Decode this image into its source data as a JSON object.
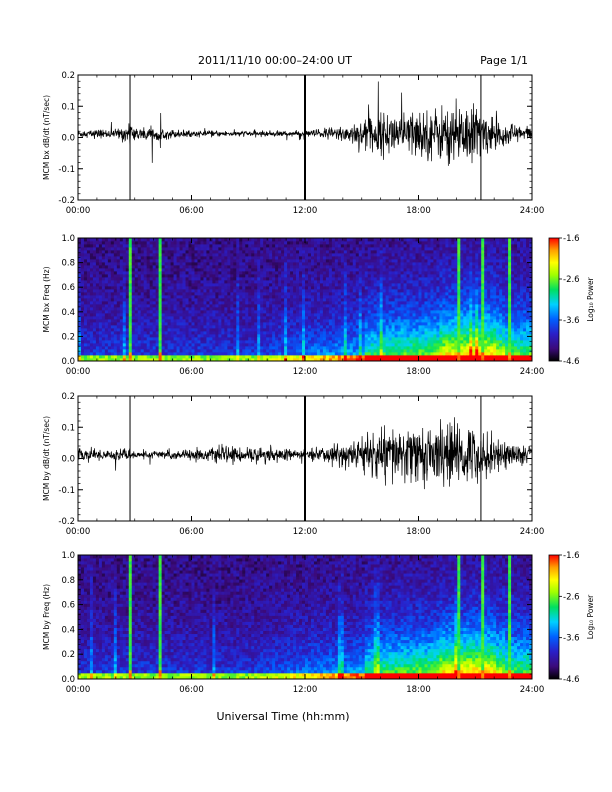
{
  "header": {
    "title": "2011/11/10  00:00–24:00 UT",
    "page": "Page 1/1"
  },
  "footer": {
    "xlabel": "Universal Time (hh:mm)"
  },
  "colors": {
    "trace": "#000000",
    "colorbar_stops": [
      "#000000",
      "#3b0a7a",
      "#2a1fc8",
      "#0060ff",
      "#00d0ff",
      "#00e060",
      "#a0ff00",
      "#ffff00",
      "#ffa000",
      "#ff0000"
    ]
  },
  "chart_data": [
    {
      "type": "line",
      "ylabel": "MCM bx dB/dt (nT/sec)",
      "xlim": [
        0,
        24
      ],
      "ylim": [
        -0.2,
        0.2
      ],
      "x_ticks": [
        "00:00",
        "06:00",
        "12:00",
        "18:00",
        "24:00"
      ],
      "y_ticks": [
        "-0.2",
        "-0.1",
        "0.0",
        "0.1",
        "0.2"
      ],
      "markers_hours": [
        2.75,
        12.0,
        21.3
      ],
      "envelope": [
        {
          "x": 0,
          "amp": 0.015
        },
        {
          "x": 2,
          "amp": 0.015
        },
        {
          "x": 2.5,
          "amp": 0.03
        },
        {
          "x": 6,
          "amp": 0.01
        },
        {
          "x": 12,
          "amp": 0.01
        },
        {
          "x": 14,
          "amp": 0.03
        },
        {
          "x": 16,
          "amp": 0.07
        },
        {
          "x": 19,
          "amp": 0.09
        },
        {
          "x": 20.5,
          "amp": 0.12
        },
        {
          "x": 22,
          "amp": 0.05
        },
        {
          "x": 24,
          "amp": 0.025
        }
      ]
    },
    {
      "type": "heatmap",
      "ylabel": "MCM bx Freq (Hz)",
      "colorbar_label": "Log₁₀ Power",
      "xlim": [
        0,
        24
      ],
      "ylim": [
        0,
        1.0
      ],
      "x_ticks": [
        "00:00",
        "06:00",
        "12:00",
        "18:00",
        "24:00"
      ],
      "y_ticks": [
        "0.0",
        "0.2",
        "0.4",
        "0.6",
        "0.8",
        "1.0"
      ],
      "colorbar_ticks": [
        "-1.6",
        "-2.6",
        "-3.6",
        "-4.6"
      ],
      "clim": [
        -4.6,
        -1.6
      ],
      "bright_columns_hours": [
        2.75,
        4.3,
        20.0,
        21.3,
        22.8
      ]
    },
    {
      "type": "line",
      "ylabel": "MCM by dB/dt (nT/sec)",
      "xlim": [
        0,
        24
      ],
      "ylim": [
        -0.2,
        0.2
      ],
      "x_ticks": [
        "00:00",
        "06:00",
        "12:00",
        "18:00",
        "24:00"
      ],
      "y_ticks": [
        "-0.2",
        "-0.1",
        "0.0",
        "0.1",
        "0.2"
      ],
      "markers_hours": [
        2.75,
        12.0,
        21.3
      ],
      "envelope": [
        {
          "x": 0,
          "amp": 0.02
        },
        {
          "x": 2,
          "amp": 0.02
        },
        {
          "x": 3.5,
          "amp": 0.012
        },
        {
          "x": 9.5,
          "amp": 0.03
        },
        {
          "x": 12,
          "amp": 0.015
        },
        {
          "x": 14,
          "amp": 0.04
        },
        {
          "x": 16,
          "amp": 0.09
        },
        {
          "x": 18,
          "amp": 0.1
        },
        {
          "x": 20.5,
          "amp": 0.11
        },
        {
          "x": 22,
          "amp": 0.06
        },
        {
          "x": 24,
          "amp": 0.03
        }
      ]
    },
    {
      "type": "heatmap",
      "ylabel": "MCM by Freq (Hz)",
      "colorbar_label": "Log₁₀ Power",
      "xlim": [
        0,
        24
      ],
      "ylim": [
        0,
        1.0
      ],
      "x_ticks": [
        "00:00",
        "06:00",
        "12:00",
        "18:00",
        "24:00"
      ],
      "y_ticks": [
        "0.0",
        "0.2",
        "0.4",
        "0.6",
        "0.8",
        "1.0"
      ],
      "colorbar_ticks": [
        "-1.6",
        "-2.6",
        "-3.6",
        "-4.6"
      ],
      "clim": [
        -4.6,
        -1.6
      ],
      "bright_columns_hours": [
        2.75,
        4.3,
        20.0,
        21.3,
        22.8
      ]
    }
  ]
}
